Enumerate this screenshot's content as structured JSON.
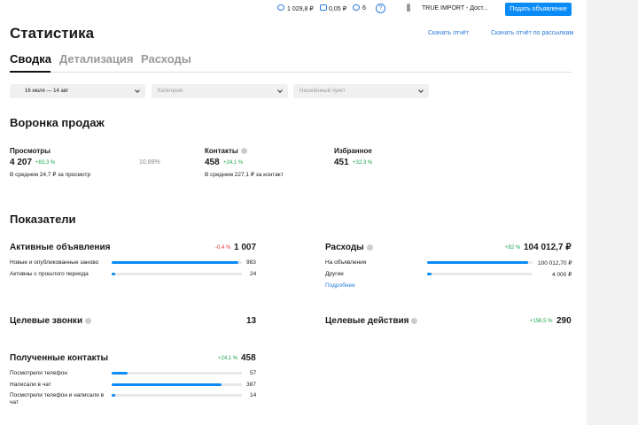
{
  "topbar": {
    "balance": "1 029,8 ₽",
    "bonus": "0,05 ₽",
    "messages": "6",
    "help": "?",
    "account": "TRUE IMPORT - Дост...",
    "post_button": "Подать объявление"
  },
  "header": {
    "title": "Статистика",
    "download_report": "Скачать отчёт",
    "download_mailing_report": "Скачать отчёт по рассылкам"
  },
  "tabs": [
    "Сводка",
    "Детализация",
    "Расходы"
  ],
  "filters": {
    "date": "16 июля — 14 авг",
    "category": "Категория",
    "location": "Населённый пункт"
  },
  "funnel": {
    "title": "Воронка продаж",
    "conversion": "10,89%",
    "stages": [
      {
        "name": "Просмотры",
        "value": "4 207",
        "change": "+83,3 %",
        "note": "В среднем 24,7 ₽ за просмотр"
      },
      {
        "name": "Контакты",
        "value": "458",
        "change": "+24,1 %",
        "note": "В среднем 227,1 ₽ за контакт"
      },
      {
        "name": "Избранное",
        "value": "451",
        "change": "+32,3 %"
      }
    ]
  },
  "metrics": {
    "title": "Показатели",
    "cards": [
      {
        "name": "Активные объявления",
        "change": "-0,4 %",
        "total": {
          "value": 1007,
          "label": "1 007"
        },
        "rows": [
          {
            "name": "Новые и опубликованные заново",
            "value": 983
          },
          {
            "name": "Активны с прошлого периода",
            "value": 24
          }
        ]
      },
      {
        "name": "Расходы",
        "change": "+82 %",
        "total": {
          "value": 104012.7,
          "label": "104 012,7 ₽"
        },
        "rows": [
          {
            "name": "На объявления",
            "value": 100012.7,
            "value_label": "100 012,70 ₽"
          },
          {
            "name": "Другие",
            "value": 4000,
            "value_label": "4 000 ₽"
          }
        ],
        "link": "Подробнее"
      },
      {
        "name": "Целевые звонки",
        "total": 13
      },
      {
        "name": "Целевые действия",
        "change": "+156,5 %",
        "total": 290
      },
      {
        "name": "Полученные контакты",
        "change": "+24,1 %",
        "total": 458,
        "rows": [
          {
            "name": "Посмотрели телефон",
            "value": 57
          },
          {
            "name": "Написали в чат",
            "value": 387
          },
          {
            "name": "Посмотрели телефон и написали в чат",
            "value": 14
          }
        ]
      }
    ]
  }
}
